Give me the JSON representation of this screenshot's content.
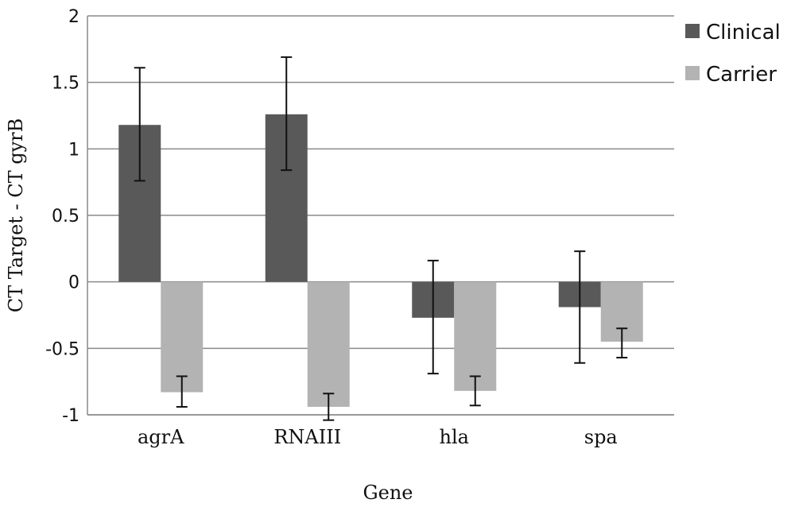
{
  "chart_data": {
    "type": "bar",
    "categories": [
      "agrA",
      "RNAIII",
      "hla",
      "spa"
    ],
    "series": [
      {
        "name": "Clinical",
        "color": "#595959",
        "values": [
          1.18,
          1.26,
          -0.27,
          -0.19
        ],
        "error_low": [
          0.76,
          0.84,
          -0.69,
          -0.61
        ],
        "error_high": [
          1.61,
          1.69,
          0.16,
          0.23
        ]
      },
      {
        "name": "Carrier",
        "color": "#b3b3b3",
        "values": [
          -0.83,
          -0.94,
          -0.82,
          -0.45
        ],
        "error_low": [
          -0.94,
          -1.04,
          -0.93,
          -0.57
        ],
        "error_high": [
          -0.71,
          -0.84,
          -0.71,
          -0.35
        ]
      }
    ],
    "xlabel": "Gene",
    "ylabel": "CT Target - CT gyrB",
    "ylim": [
      -1,
      2
    ],
    "yticks": [
      "2",
      "1.5",
      "1",
      "0.5",
      "0",
      "-0.5",
      "-1"
    ],
    "ytick_values": [
      2,
      1.5,
      1,
      0.5,
      0,
      -0.5,
      -1
    ],
    "grid": true,
    "legend_position": "top-right"
  }
}
